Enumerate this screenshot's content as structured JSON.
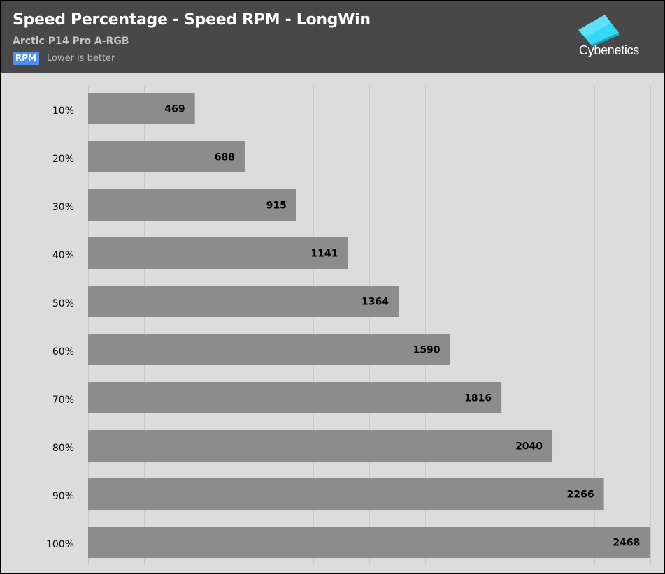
{
  "header": {
    "title": "Speed Percentage - Speed RPM - LongWin",
    "subtitle": "Arctic P14 Pro A-RGB",
    "unit_badge": "RPM",
    "note": "Lower is better",
    "logo_text": "Cybenetics"
  },
  "colors": {
    "header_bg": "#484848",
    "plot_bg": "#dcdcdc",
    "bar": "#8c8c8c",
    "badge": "#4f8ff0",
    "logo_cyan": "#35d8f2"
  },
  "chart_data": {
    "type": "bar",
    "orientation": "horizontal",
    "categories": [
      "10%",
      "20%",
      "30%",
      "40%",
      "50%",
      "60%",
      "70%",
      "80%",
      "90%",
      "100%"
    ],
    "values": [
      469,
      688,
      915,
      1141,
      1364,
      1590,
      1816,
      2040,
      2266,
      2468
    ],
    "xlim": [
      0,
      2470
    ],
    "grid": true,
    "data_labels": true
  }
}
